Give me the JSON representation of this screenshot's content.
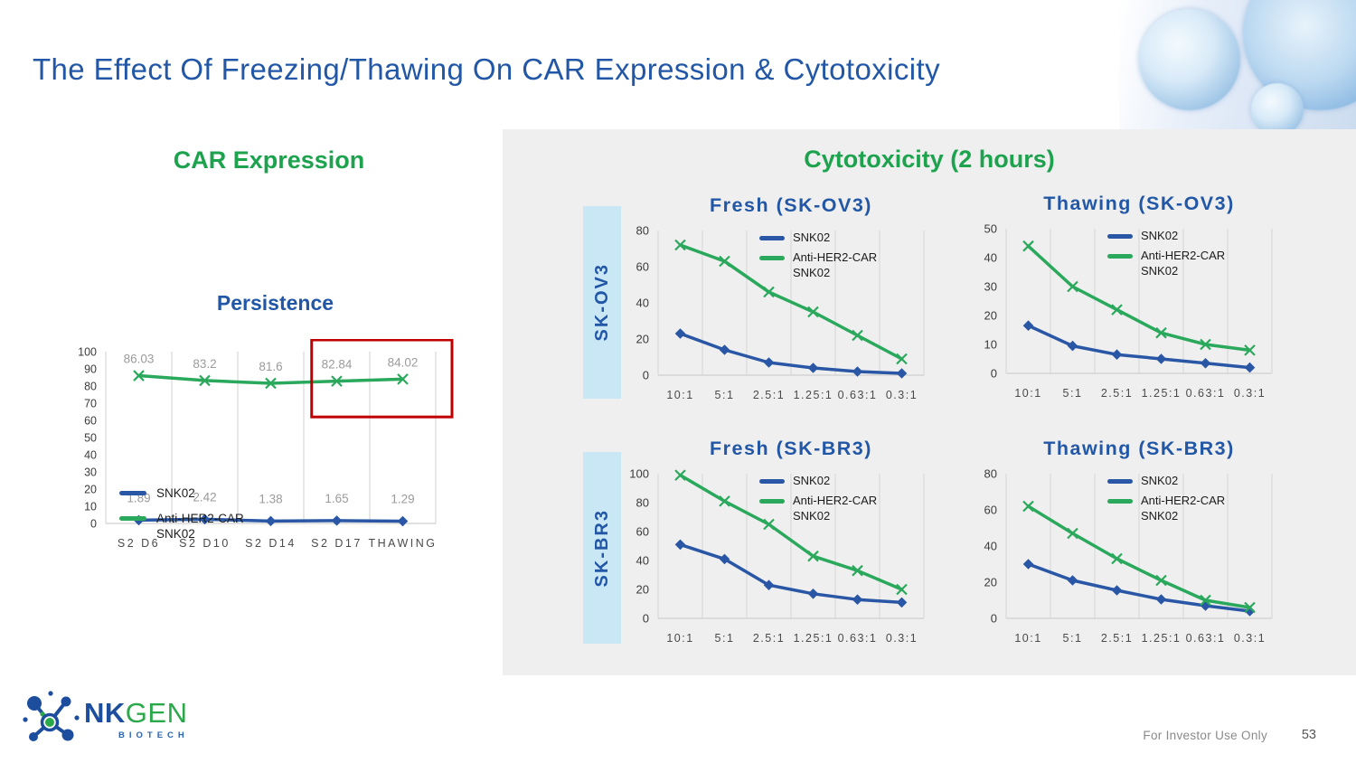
{
  "slide": {
    "title": "The Effect Of Freezing/Thawing On CAR Expression & Cytotoxicity",
    "footer": {
      "disclaimer": "For Investor Use Only",
      "page_number": "53"
    },
    "logo": {
      "name_primary": "NK",
      "name_secondary": "GEN",
      "subtitle": "BIOTECH"
    }
  },
  "left_section": {
    "heading": "CAR Expression"
  },
  "right_section": {
    "heading": "Cytotoxicity (2 hours)",
    "row_labels": [
      "SK-OV3",
      "SK-BR3"
    ]
  },
  "legend": {
    "series1": "SNK02",
    "series2_line1": "Anti-HER2-CAR",
    "series2_line2": "SNK02"
  },
  "colors": {
    "title_blue": "#2157A6",
    "heading_green": "#1DA24E",
    "line_blue": "#2A57A5",
    "line_green": "#2AA85C",
    "panel_gray": "#EFEFEF",
    "band_blue": "#C9E7F5",
    "highlight_red": "#C00000",
    "point_label_gray": "#9B9B9B"
  },
  "chart_data": [
    {
      "id": "persistence",
      "layout": "persistence",
      "type": "line",
      "title": "Persistence",
      "categories": [
        "S2 D6",
        "S2 D10",
        "S2 D14",
        "S2 D17",
        "THAWING"
      ],
      "ylim": [
        0,
        100
      ],
      "yticks": [
        0,
        10,
        20,
        30,
        40,
        50,
        60,
        70,
        80,
        90,
        100
      ],
      "grid": "vertical",
      "legend_position": "inside-left",
      "series": [
        {
          "name": "SNK02",
          "color": "#2A57A5",
          "marker": "diamond",
          "values": [
            1.89,
            2.42,
            1.38,
            1.65,
            1.29
          ],
          "point_labels": [
            "1.89",
            "2.42",
            "1.38",
            "1.65",
            "1.29"
          ]
        },
        {
          "name": "Anti-HER2-CAR SNK02",
          "color": "#2AA85C",
          "marker": "x",
          "values": [
            86.03,
            83.2,
            81.6,
            82.84,
            84.02
          ],
          "point_labels": [
            "86.03",
            "83.2",
            "81.6",
            "82.84",
            "84.02"
          ]
        }
      ],
      "highlight": {
        "shape": "red-box",
        "from_category": "S2 D17",
        "to_category": "THAWING",
        "y_bottom": 62
      }
    },
    {
      "id": "fresh_sk_ov3",
      "layout": "cyto",
      "type": "line",
      "title": "Fresh (SK-OV3)",
      "categories": [
        "10:1",
        "5:1",
        "2.5:1",
        "1.25:1",
        "0.63:1",
        "0.3:1"
      ],
      "ylim": [
        0,
        80
      ],
      "yticks": [
        0,
        20,
        40,
        60,
        80
      ],
      "grid": "vertical",
      "legend_position": "inside-top-right",
      "series": [
        {
          "name": "SNK02",
          "color": "#2A57A5",
          "marker": "diamond",
          "values": [
            23,
            14,
            7,
            4,
            2,
            1
          ]
        },
        {
          "name": "Anti-HER2-CAR SNK02",
          "color": "#2AA85C",
          "marker": "x",
          "values": [
            72,
            63,
            46,
            35,
            22,
            9
          ]
        }
      ]
    },
    {
      "id": "thawing_sk_ov3",
      "layout": "cyto",
      "type": "line",
      "title": "Thawing (SK-OV3)",
      "categories": [
        "10:1",
        "5:1",
        "2.5:1",
        "1.25:1",
        "0.63:1",
        "0.3:1"
      ],
      "ylim": [
        0,
        50
      ],
      "yticks": [
        0,
        10,
        20,
        30,
        40,
        50
      ],
      "grid": "vertical",
      "legend_position": "inside-top-right",
      "series": [
        {
          "name": "SNK02",
          "color": "#2A57A5",
          "marker": "diamond",
          "values": [
            16.5,
            9.5,
            6.5,
            5,
            3.5,
            2
          ]
        },
        {
          "name": "Anti-HER2-CAR SNK02",
          "color": "#2AA85C",
          "marker": "x",
          "values": [
            44,
            30,
            22,
            14,
            10,
            8
          ]
        }
      ]
    },
    {
      "id": "fresh_sk_br3",
      "layout": "cyto",
      "type": "line",
      "title": "Fresh (SK-BR3)",
      "categories": [
        "10:1",
        "5:1",
        "2.5:1",
        "1.25:1",
        "0.63:1",
        "0.3:1"
      ],
      "ylim": [
        0,
        100
      ],
      "yticks": [
        0,
        20,
        40,
        60,
        80,
        100
      ],
      "grid": "vertical",
      "legend_position": "inside-top-right",
      "series": [
        {
          "name": "SNK02",
          "color": "#2A57A5",
          "marker": "diamond",
          "values": [
            51,
            41,
            23,
            17,
            13,
            11
          ]
        },
        {
          "name": "Anti-HER2-CAR SNK02",
          "color": "#2AA85C",
          "marker": "x",
          "values": [
            99,
            81,
            65,
            43,
            33,
            20
          ]
        }
      ]
    },
    {
      "id": "thawing_sk_br3",
      "layout": "cyto",
      "type": "line",
      "title": "Thawing (SK-BR3)",
      "categories": [
        "10:1",
        "5:1",
        "2.5:1",
        "1.25:1",
        "0.63:1",
        "0.3:1"
      ],
      "ylim": [
        0,
        80
      ],
      "yticks": [
        0,
        20,
        40,
        60,
        80
      ],
      "grid": "vertical",
      "legend_position": "inside-top-right",
      "series": [
        {
          "name": "SNK02",
          "color": "#2A57A5",
          "marker": "diamond",
          "values": [
            30,
            21,
            15.5,
            10.5,
            7,
            4
          ]
        },
        {
          "name": "Anti-HER2-CAR SNK02",
          "color": "#2AA85C",
          "marker": "x",
          "values": [
            62,
            47,
            33,
            21,
            10,
            6
          ]
        }
      ]
    }
  ]
}
